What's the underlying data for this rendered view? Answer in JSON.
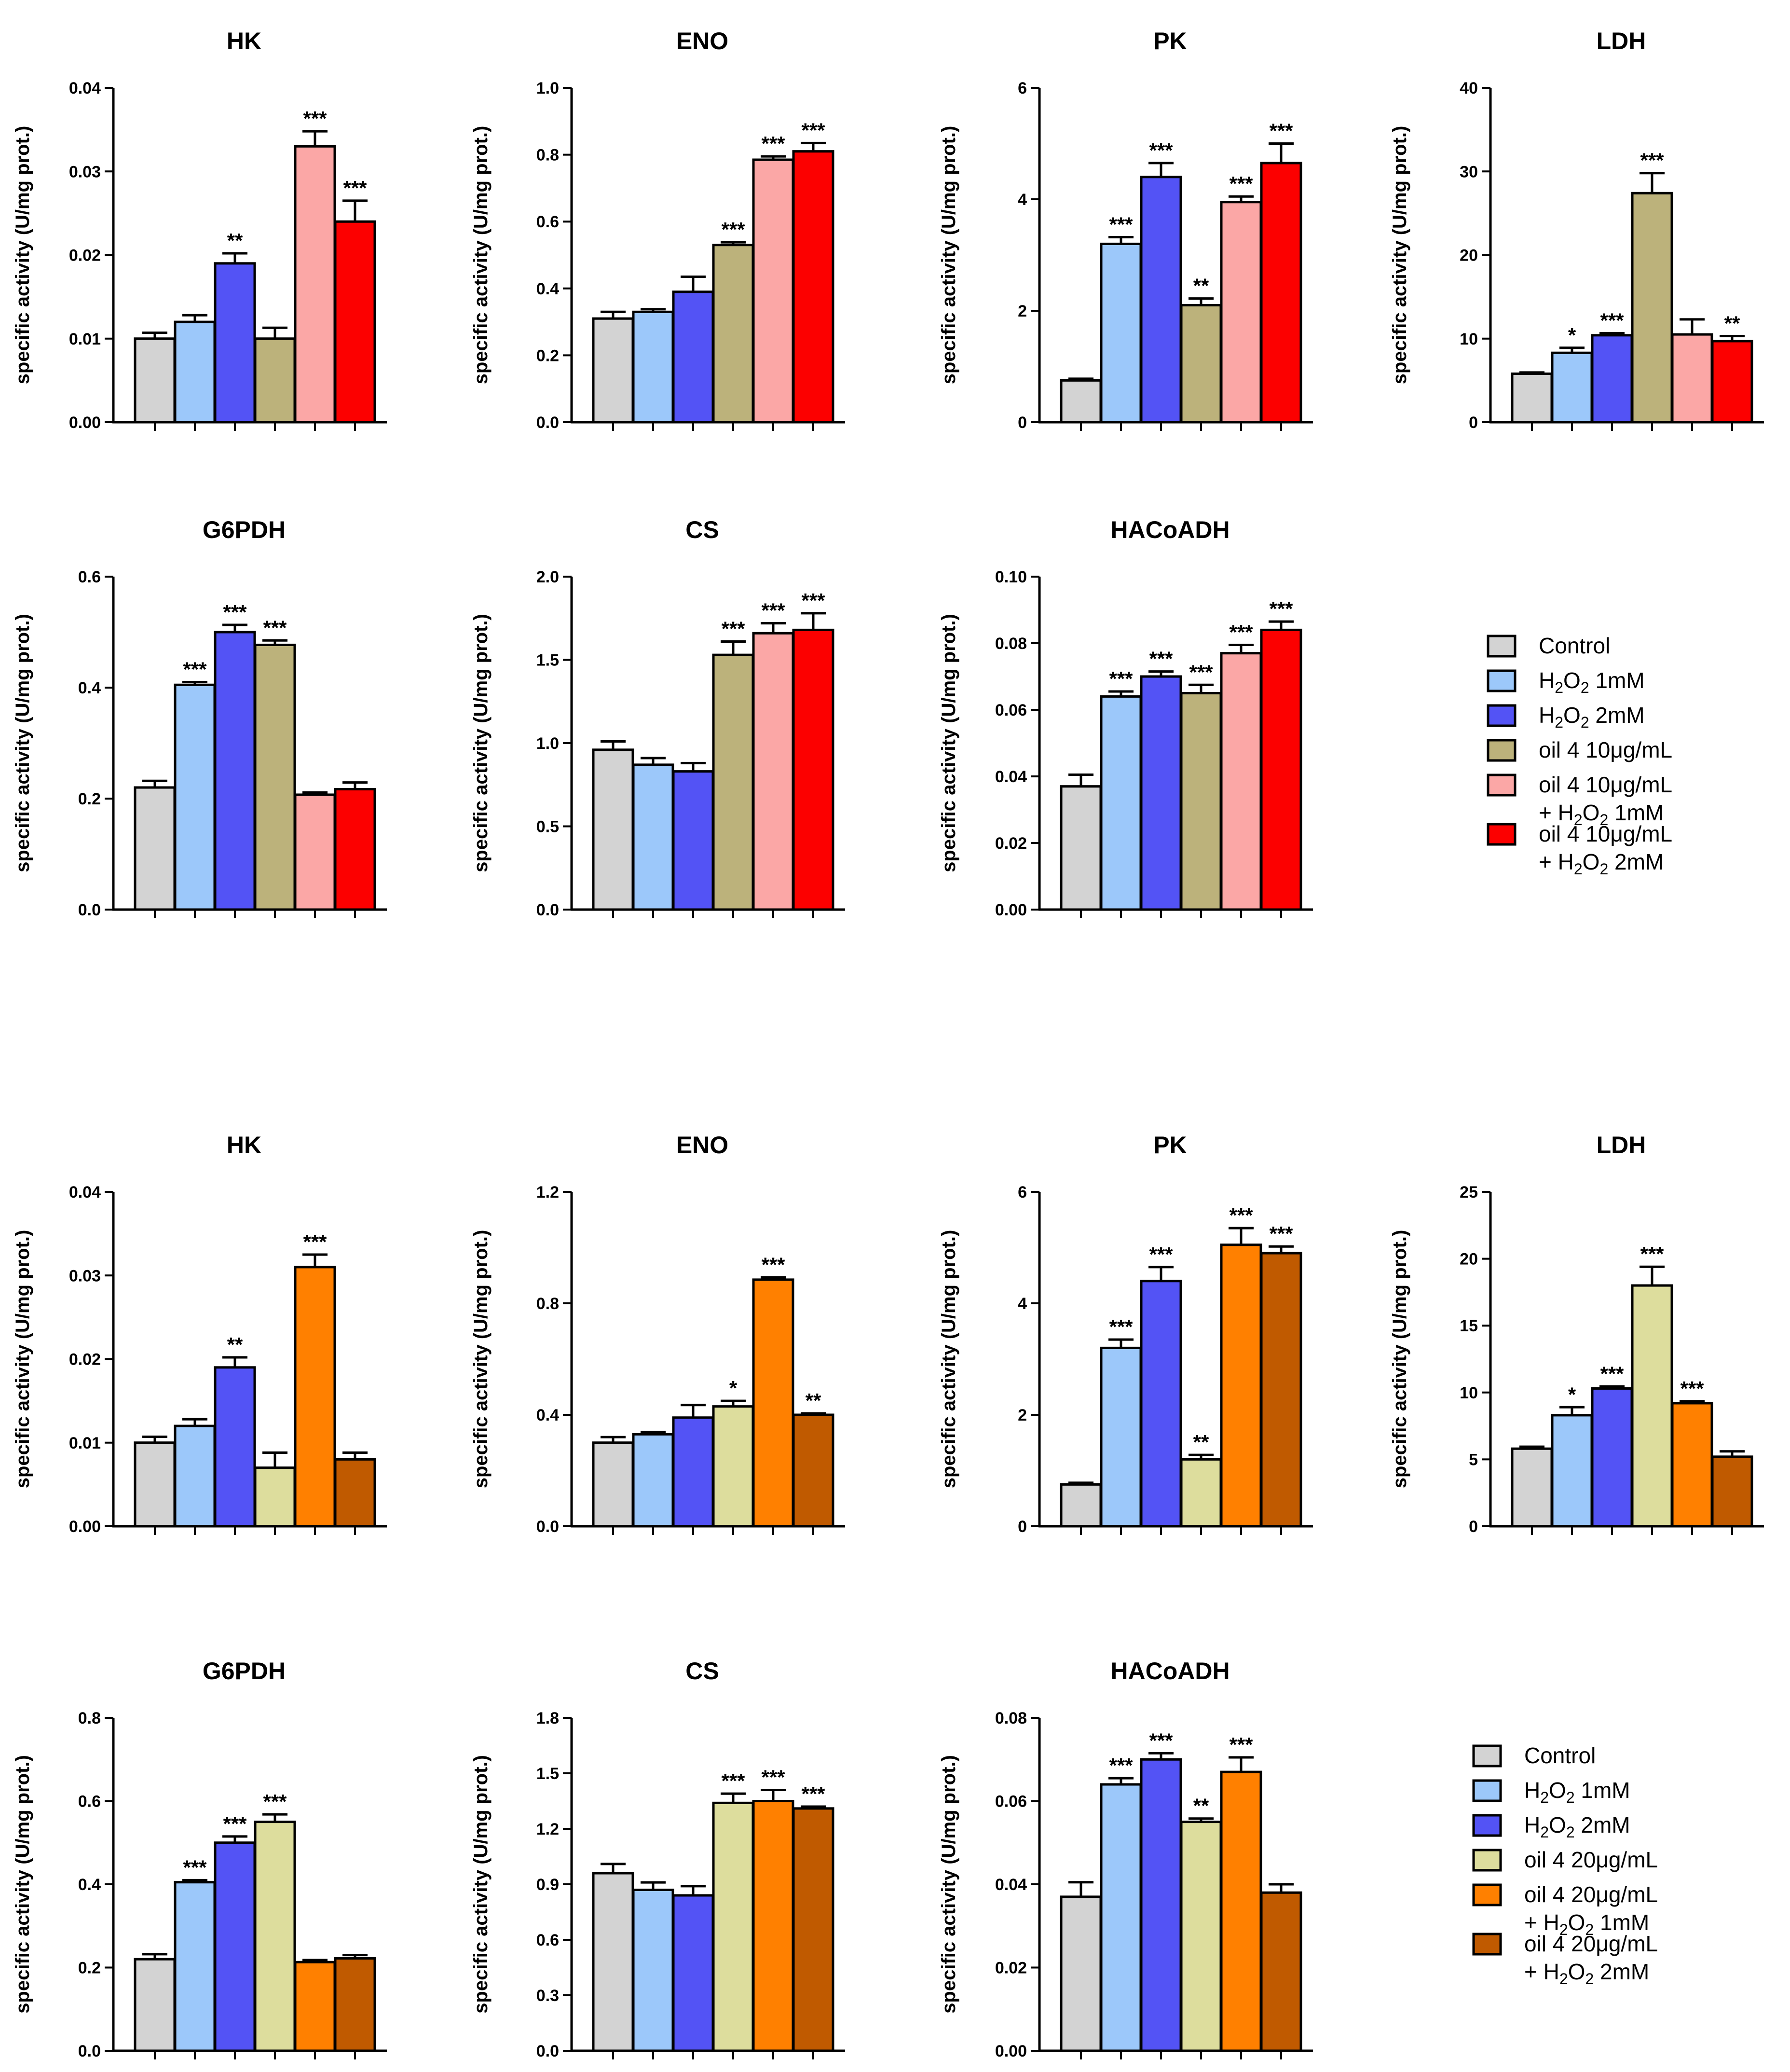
{
  "figure": {
    "ylabel": "specific activity (U/mg prot.)",
    "legends": [
      {
        "entries": [
          {
            "label": "Control"
          },
          {
            "label": "H2O2 1mM",
            "chem": true,
            "line1_pre": "H",
            "line1_sub": "2",
            "line1_mid": "O",
            "line1_sub2": "2",
            "line1_post": " 1mM"
          },
          {
            "label": "H2O2 2mM",
            "chem": true,
            "line1_pre": "H",
            "line1_sub": "2",
            "line1_mid": "O",
            "line1_sub2": "2",
            "line1_post": " 2mM"
          },
          {
            "label": "oil 4 10μg/mL"
          },
          {
            "label": "oil 4 10μg/mL + H2O2 1mM",
            "line1": "oil 4 10μg/mL",
            "line2_pre": "+ H",
            "line2_sub": "2",
            "line2_mid": "O",
            "line2_sub2": "2",
            "line2_post": " 1mM"
          },
          {
            "label": "oil 4 10μg/mL + H2O2 2mM",
            "line1": "oil 4 10μg/mL",
            "line2_pre": "+ H",
            "line2_sub": "2",
            "line2_mid": "O",
            "line2_sub2": "2",
            "line2_post": " 2mM"
          }
        ]
      },
      {
        "entries": [
          {
            "label": "Control"
          },
          {
            "label": "H2O2 1mM",
            "chem": true,
            "line1_pre": "H",
            "line1_sub": "2",
            "line1_mid": "O",
            "line1_sub2": "2",
            "line1_post": " 1mM"
          },
          {
            "label": "H2O2 2mM",
            "chem": true,
            "line1_pre": "H",
            "line1_sub": "2",
            "line1_mid": "O",
            "line1_sub2": "2",
            "line1_post": " 2mM"
          },
          {
            "label": "oil 4 20μg/mL"
          },
          {
            "label": "oil 4 20μg/mL + H2O2 1mM",
            "line1": "oil 4 20μg/mL",
            "line2_pre": "+ H",
            "line2_sub": "2",
            "line2_mid": "O",
            "line2_sub2": "2",
            "line2_post": " 1mM"
          },
          {
            "label": "oil 4 20μg/mL + H2O2 2mM",
            "line1": "oil 4 20μg/mL",
            "line2_pre": "+ H",
            "line2_sub": "2",
            "line2_mid": "O",
            "line2_sub2": "2",
            "line2_post": " 2mM"
          }
        ]
      }
    ],
    "colors_set1": [
      "#d3d3d3",
      "#9cc8fa",
      "#5353f5",
      "#bcb27b",
      "#fba7a6",
      "#fc0000"
    ],
    "colors_set2": [
      "#d3d3d3",
      "#9cc8fa",
      "#5353f5",
      "#dddd9d",
      "#ff8000",
      "#c05a00"
    ]
  },
  "chart_data": [
    {
      "type": "bar",
      "title": "HK",
      "ylabel": "specific activity (U/mg prot.)",
      "ylim": [
        0,
        0.04
      ],
      "ticks": [
        "0.00",
        "0.01",
        "0.02",
        "0.03",
        "0.04"
      ],
      "tick_values": [
        0,
        0.01,
        0.02,
        0.03,
        0.04
      ],
      "values": [
        0.01,
        0.012,
        0.019,
        0.01,
        0.033,
        0.024
      ],
      "errors": [
        0.0007,
        0.0008,
        0.0012,
        0.0013,
        0.0018,
        0.0025
      ],
      "sig": [
        "",
        "",
        "**",
        "",
        "***",
        "***"
      ],
      "color_set": 1
    },
    {
      "type": "bar",
      "title": "ENO",
      "ylabel": "specific activity (U/mg prot.)",
      "ylim": [
        0,
        1.0
      ],
      "ticks": [
        "0.0",
        "0.2",
        "0.4",
        "0.6",
        "0.8",
        "1.0"
      ],
      "tick_values": [
        0,
        0.2,
        0.4,
        0.6,
        0.8,
        1.0
      ],
      "values": [
        0.31,
        0.33,
        0.39,
        0.53,
        0.785,
        0.81
      ],
      "errors": [
        0.02,
        0.008,
        0.045,
        0.008,
        0.01,
        0.025
      ],
      "sig": [
        "",
        "",
        "",
        "***",
        "***",
        "***"
      ],
      "color_set": 1
    },
    {
      "type": "bar",
      "title": "PK",
      "ylabel": "specific activity (U/mg prot.)",
      "ylim": [
        0,
        6
      ],
      "ticks": [
        "0",
        "2",
        "4",
        "6"
      ],
      "tick_values": [
        0,
        2,
        4,
        6
      ],
      "values": [
        0.75,
        3.2,
        4.4,
        2.1,
        3.95,
        4.65
      ],
      "errors": [
        0.03,
        0.12,
        0.25,
        0.12,
        0.1,
        0.35
      ],
      "sig": [
        "",
        "***",
        "***",
        "**",
        "***",
        "***"
      ],
      "color_set": 1
    },
    {
      "type": "bar",
      "title": "LDH",
      "ylabel": "specific activity (U/mg prot.)",
      "ylim": [
        0,
        40
      ],
      "ticks": [
        "0",
        "10",
        "20",
        "30",
        "40"
      ],
      "tick_values": [
        0,
        10,
        20,
        30,
        40
      ],
      "values": [
        5.8,
        8.3,
        10.4,
        27.4,
        10.5,
        9.7
      ],
      "errors": [
        0.15,
        0.6,
        0.25,
        2.4,
        1.8,
        0.6
      ],
      "sig": [
        "",
        "*",
        "***",
        "***",
        "",
        "**"
      ],
      "color_set": 1
    },
    {
      "type": "bar",
      "title": "G6PDH",
      "ylabel": "specific activity (U/mg prot.)",
      "ylim": [
        0,
        0.6
      ],
      "ticks": [
        "0.0",
        "0.2",
        "0.4",
        "0.6"
      ],
      "tick_values": [
        0,
        0.2,
        0.4,
        0.6
      ],
      "values": [
        0.22,
        0.405,
        0.5,
        0.477,
        0.207,
        0.217
      ],
      "errors": [
        0.012,
        0.005,
        0.013,
        0.008,
        0.004,
        0.012
      ],
      "sig": [
        "",
        "***",
        "***",
        "***",
        "",
        ""
      ],
      "color_set": 1
    },
    {
      "type": "bar",
      "title": "CS",
      "ylabel": "specific activity (U/mg prot.)",
      "ylim": [
        0,
        2.0
      ],
      "ticks": [
        "0.0",
        "0.5",
        "1.0",
        "1.5",
        "2.0"
      ],
      "tick_values": [
        0,
        0.5,
        1.0,
        1.5,
        2.0
      ],
      "values": [
        0.96,
        0.87,
        0.83,
        1.53,
        1.66,
        1.68
      ],
      "errors": [
        0.05,
        0.04,
        0.05,
        0.08,
        0.06,
        0.1
      ],
      "sig": [
        "",
        "",
        "",
        "***",
        "***",
        "***"
      ],
      "color_set": 1
    },
    {
      "type": "bar",
      "title": "HACoADH",
      "ylabel": "specific activity (U/mg prot.)",
      "ylim": [
        0,
        0.1
      ],
      "ticks": [
        "0.00",
        "0.02",
        "0.04",
        "0.06",
        "0.08",
        "0.10"
      ],
      "tick_values": [
        0,
        0.02,
        0.04,
        0.06,
        0.08,
        0.1
      ],
      "values": [
        0.037,
        0.064,
        0.07,
        0.065,
        0.077,
        0.084
      ],
      "errors": [
        0.0035,
        0.0015,
        0.0015,
        0.0025,
        0.0025,
        0.0025
      ],
      "sig": [
        "",
        "***",
        "***",
        "***",
        "***",
        "***"
      ],
      "color_set": 1
    },
    {
      "type": "bar",
      "title": "HK",
      "ylabel": "specific activity (U/mg prot.)",
      "ylim": [
        0,
        0.04
      ],
      "ticks": [
        "0.00",
        "0.01",
        "0.02",
        "0.03",
        "0.04"
      ],
      "tick_values": [
        0,
        0.01,
        0.02,
        0.03,
        0.04
      ],
      "values": [
        0.01,
        0.012,
        0.019,
        0.007,
        0.031,
        0.008
      ],
      "errors": [
        0.0007,
        0.0008,
        0.0012,
        0.0018,
        0.0015,
        0.0008
      ],
      "sig": [
        "",
        "",
        "**",
        "",
        "***",
        ""
      ],
      "color_set": 2
    },
    {
      "type": "bar",
      "title": "ENO",
      "ylabel": "specific activity (U/mg prot.)",
      "ylim": [
        0,
        1.2
      ],
      "ticks": [
        "0.0",
        "0.4",
        "0.8",
        "1.2"
      ],
      "tick_values": [
        0,
        0.4,
        0.8,
        1.2
      ],
      "values": [
        0.3,
        0.33,
        0.39,
        0.43,
        0.885,
        0.4
      ],
      "errors": [
        0.02,
        0.008,
        0.045,
        0.02,
        0.008,
        0.005
      ],
      "sig": [
        "",
        "",
        "",
        "*",
        "***",
        "**"
      ],
      "color_set": 2
    },
    {
      "type": "bar",
      "title": "PK",
      "ylabel": "specific activity (U/mg prot.)",
      "ylim": [
        0,
        6
      ],
      "ticks": [
        "0",
        "2",
        "4",
        "6"
      ],
      "tick_values": [
        0,
        2,
        4,
        6
      ],
      "values": [
        0.75,
        3.2,
        4.4,
        1.2,
        5.05,
        4.9
      ],
      "errors": [
        0.03,
        0.15,
        0.25,
        0.08,
        0.3,
        0.12
      ],
      "sig": [
        "",
        "***",
        "***",
        "**",
        "***",
        "***"
      ],
      "color_set": 2
    },
    {
      "type": "bar",
      "title": "LDH",
      "ylabel": "specific activity (U/mg prot.)",
      "ylim": [
        0,
        25
      ],
      "ticks": [
        "0",
        "5",
        "10",
        "15",
        "20",
        "25"
      ],
      "tick_values": [
        0,
        5,
        10,
        15,
        20,
        25
      ],
      "values": [
        5.8,
        8.3,
        10.3,
        18.0,
        9.2,
        5.2
      ],
      "errors": [
        0.15,
        0.6,
        0.15,
        1.4,
        0.15,
        0.4
      ],
      "sig": [
        "",
        "*",
        "***",
        "***",
        "***",
        ""
      ],
      "color_set": 2
    },
    {
      "type": "bar",
      "title": "G6PDH",
      "ylabel": "specific activity (U/mg prot.)",
      "ylim": [
        0,
        0.8
      ],
      "ticks": [
        "0.0",
        "0.2",
        "0.4",
        "0.6",
        "0.8"
      ],
      "tick_values": [
        0,
        0.2,
        0.4,
        0.6,
        0.8
      ],
      "values": [
        0.22,
        0.405,
        0.5,
        0.55,
        0.213,
        0.222
      ],
      "errors": [
        0.012,
        0.005,
        0.015,
        0.018,
        0.005,
        0.008
      ],
      "sig": [
        "",
        "***",
        "***",
        "***",
        "",
        ""
      ],
      "color_set": 2
    },
    {
      "type": "bar",
      "title": "CS",
      "ylabel": "specific activity (U/mg prot.)",
      "ylim": [
        0,
        1.8
      ],
      "ticks": [
        "0.0",
        "0.3",
        "0.6",
        "0.9",
        "1.2",
        "1.5",
        "1.8"
      ],
      "tick_values": [
        0,
        0.3,
        0.6,
        0.9,
        1.2,
        1.5,
        1.8
      ],
      "values": [
        0.96,
        0.87,
        0.84,
        1.34,
        1.35,
        1.31
      ],
      "errors": [
        0.05,
        0.04,
        0.05,
        0.05,
        0.06,
        0.01
      ],
      "sig": [
        "",
        "",
        "",
        "***",
        "***",
        "***"
      ],
      "color_set": 2
    },
    {
      "type": "bar",
      "title": "HACoADH",
      "ylabel": "specific activity (U/mg prot.)",
      "ylim": [
        0,
        0.08
      ],
      "ticks": [
        "0.00",
        "0.02",
        "0.04",
        "0.06",
        "0.08"
      ],
      "tick_values": [
        0,
        0.02,
        0.04,
        0.06,
        0.08
      ],
      "values": [
        0.037,
        0.064,
        0.07,
        0.055,
        0.067,
        0.038
      ],
      "errors": [
        0.0035,
        0.0015,
        0.0015,
        0.0008,
        0.0035,
        0.002
      ],
      "sig": [
        "",
        "***",
        "***",
        "**",
        "***",
        ""
      ],
      "color_set": 2
    }
  ]
}
